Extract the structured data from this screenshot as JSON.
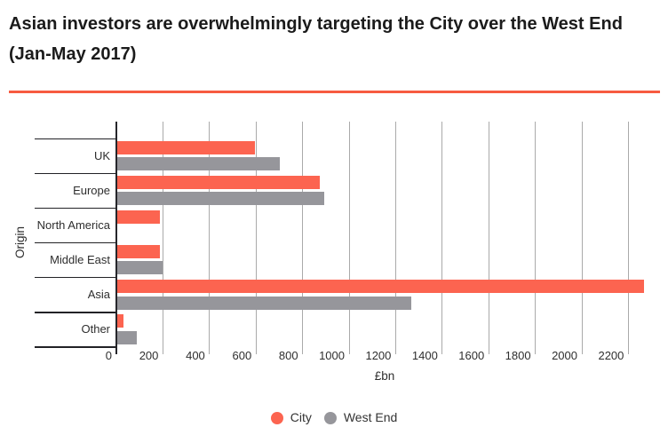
{
  "page": {
    "background": "#ffffff",
    "divider_color": "#f75b40",
    "axis_color": "#26262b",
    "gridline_color": "#aaaaaa"
  },
  "chart_data": {
    "type": "bar",
    "orientation": "horizontal",
    "title": "Asian investors are overwhelmingly targeting the City over the West End (Jan-May 2017)",
    "xlabel": "£bn",
    "ylabel": "Origin",
    "categories": [
      "UK",
      "Europe",
      "North America",
      "Middle East",
      "Asia",
      "Other"
    ],
    "series": [
      {
        "name": "City",
        "color": "#fc6450",
        "values": [
          590,
          870,
          185,
          185,
          2265,
          25
        ]
      },
      {
        "name": "West End",
        "color": "#96969b",
        "values": [
          700,
          890,
          0,
          195,
          1265,
          85
        ]
      }
    ],
    "xticks": [
      0,
      200,
      400,
      600,
      800,
      1000,
      1200,
      1400,
      1600,
      1800,
      2000,
      2200
    ],
    "xlim": [
      0,
      2370
    ],
    "grid": "vertical-gridlines-only",
    "legend_position": "bottom-center",
    "legend_marker": "circle"
  }
}
